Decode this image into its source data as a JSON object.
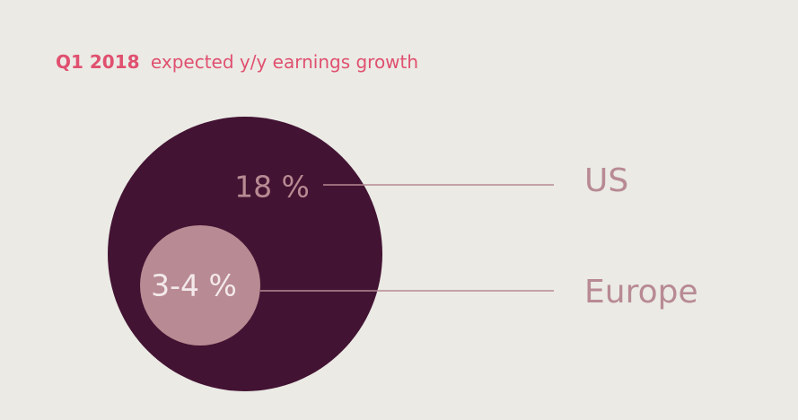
{
  "title": {
    "highlight": "Q1 2018",
    "text": "expected y/y earnings growth"
  },
  "items": [
    {
      "label": "US",
      "value_text": "18 %"
    },
    {
      "label": "Europe",
      "value_text": "3-4 %"
    }
  ]
}
